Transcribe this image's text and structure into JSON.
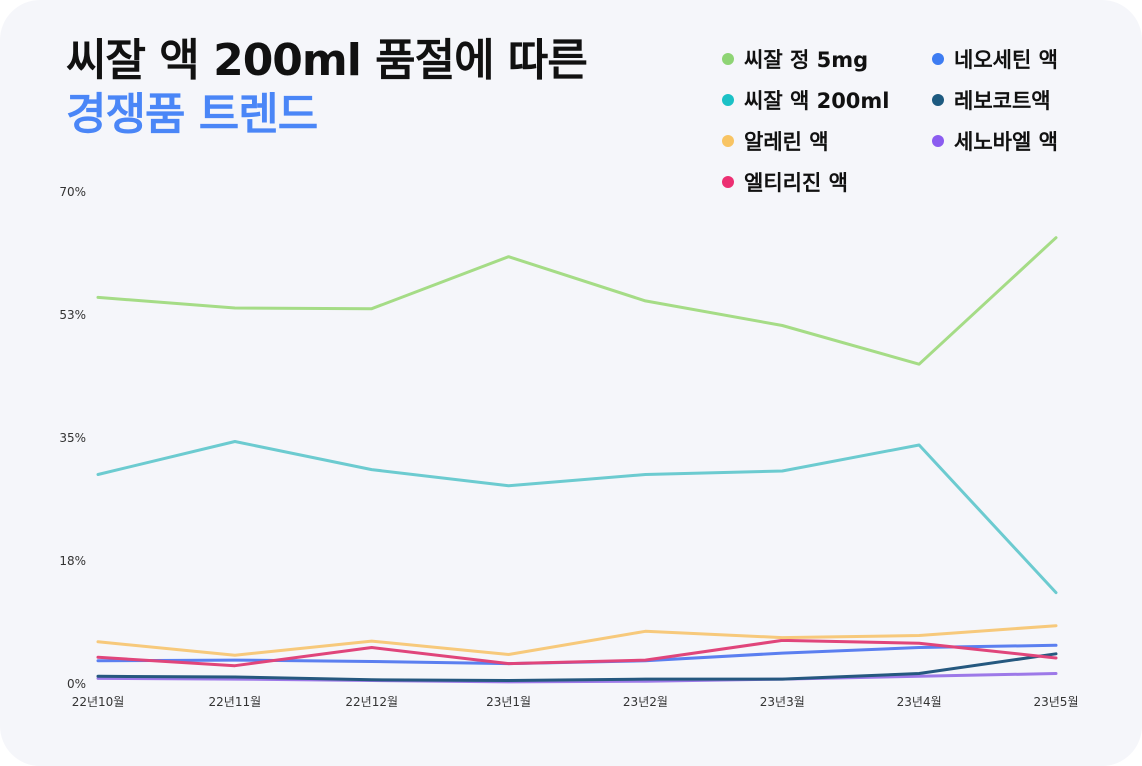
{
  "title": {
    "line1": "씨잘 액 200ml 품절에 따른",
    "line2": "경쟁품 트렌드"
  },
  "colors": {
    "background": "#f5f6fa",
    "title_accent": "#4a86f7",
    "title_text": "#111111"
  },
  "chart_data": {
    "type": "line",
    "x": [
      "22년10월",
      "22년11월",
      "22년12월",
      "23년1월",
      "23년2월",
      "23년3월",
      "23년4월",
      "23년5월"
    ],
    "y_ticks": [
      "0%",
      "18%",
      "35%",
      "53%",
      "70%"
    ],
    "ylim": [
      0,
      70
    ],
    "grid": false,
    "legend_position": "top-right",
    "series": [
      {
        "name": "씨잘 정 5mg",
        "color": "#a5dc86",
        "values": [
          55.0,
          53.5,
          53.4,
          60.8,
          54.5,
          51.0,
          45.5,
          63.5
        ]
      },
      {
        "name": "씨잘 액 200ml",
        "color": "#6ccbd0",
        "values": [
          29.8,
          34.5,
          30.5,
          28.2,
          29.8,
          30.3,
          34.0,
          13.0
        ]
      },
      {
        "name": "알레린 액",
        "color": "#f7c97b",
        "values": [
          6.0,
          4.1,
          6.1,
          4.2,
          7.5,
          6.6,
          6.9,
          8.3
        ]
      },
      {
        "name": "엘티리진 액",
        "color": "#e0457b",
        "values": [
          3.8,
          2.6,
          5.2,
          2.9,
          3.4,
          6.2,
          5.8,
          3.7
        ]
      },
      {
        "name": "네오세틴 액",
        "color": "#5b7ff0",
        "values": [
          3.3,
          3.4,
          3.2,
          2.9,
          3.3,
          4.4,
          5.2,
          5.5
        ]
      },
      {
        "name": "레보코트액",
        "color": "#25587f",
        "values": [
          1.1,
          1.0,
          0.6,
          0.5,
          0.7,
          0.7,
          1.5,
          4.3
        ]
      },
      {
        "name": "세노바엘 액",
        "color": "#9d79e8",
        "values": [
          0.8,
          0.7,
          0.5,
          0.3,
          0.4,
          0.7,
          1.1,
          1.5
        ]
      }
    ],
    "legend": [
      {
        "name": "씨잘 정 5mg",
        "color": "#8ed474"
      },
      {
        "name": "씨잘 액 200ml",
        "color": "#1bc1c6"
      },
      {
        "name": "알레린 액",
        "color": "#f8c463"
      },
      {
        "name": "엘티리진 액",
        "color": "#ec2f72"
      },
      {
        "name": "네오세틴 액",
        "color": "#3d7cf2"
      },
      {
        "name": "레보코트액",
        "color": "#1d5a80"
      },
      {
        "name": "세노바엘 액",
        "color": "#8b5cf0"
      }
    ]
  }
}
